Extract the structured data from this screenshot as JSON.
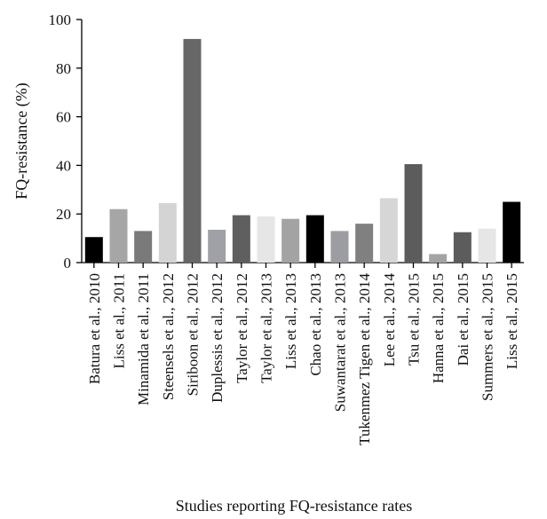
{
  "chart_data": {
    "type": "bar",
    "title": "",
    "xlabel": "Studies reporting FQ-resistance rates",
    "ylabel": "FQ-resistance (%)",
    "ylim": [
      0,
      100
    ],
    "yticks": [
      0,
      20,
      40,
      60,
      80,
      100
    ],
    "grid": false,
    "legend": "none",
    "categories": [
      "Batura et al., 2010",
      "Liss et al., 2011",
      "Minamida et al., 2011",
      "Steensels et al., 2012",
      "Siriboon et al., 2012",
      "Duplessis et al., 2012",
      "Taylor et al., 2012",
      "Taylor et al., 2013",
      "Liss et al., 2013",
      "Chao et al., 2013",
      "Suwantarat et al., 2013",
      "Tukenmez Tigen et al., 2014",
      "Lee et al., 2014",
      "Tsu et al., 2015",
      "Hanna et al., 2015",
      "Dai et al., 2015",
      "Summers et al., 2015",
      "Liss et al., 2015"
    ],
    "values": [
      10.5,
      22,
      13,
      24.5,
      92,
      13.5,
      19.5,
      19,
      18,
      19.5,
      13,
      16,
      26.5,
      40.5,
      3.5,
      12.5,
      14,
      25
    ],
    "colors": [
      "#000000",
      "#a6a6a6",
      "#7a7a7a",
      "#d4d4d4",
      "#676767",
      "#a0a0a7",
      "#5f5f5f",
      "#e6e6e6",
      "#a3a3a3",
      "#000000",
      "#9c9ca3",
      "#808080",
      "#d6d6d6",
      "#5c5c5c",
      "#a3a3a3",
      "#5c5c5c",
      "#e6e6e6",
      "#000000"
    ]
  }
}
